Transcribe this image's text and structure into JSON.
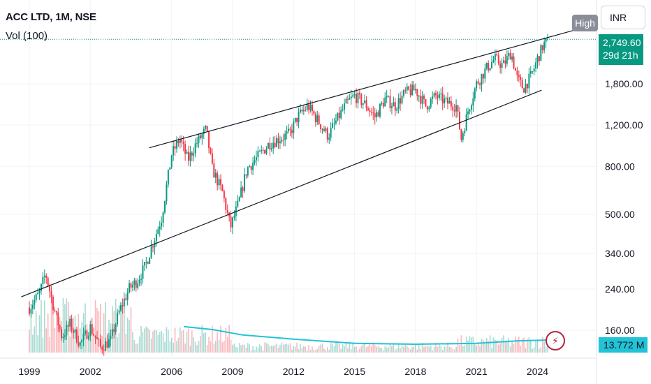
{
  "header": {
    "title": "ACC LTD, 1M, NSE",
    "volume_label": "Vol (100)"
  },
  "currency": "INR",
  "last_price": "2,749.60",
  "countdown": "29d 21h",
  "high_label": "High",
  "volume_value": "13.772 M",
  "icons": {
    "alert": "lightning-bolt-icon"
  },
  "colors": {
    "up": "#089981",
    "down": "#f23645",
    "volume_ma": "#22c3d6",
    "trendline": "#131722",
    "price_line": "#089981"
  },
  "chart_data": {
    "type": "candlestick",
    "interval": "1M",
    "scale": "log",
    "xlim": [
      1998.6,
      2026.2
    ],
    "ylim": [
      120,
      3600
    ],
    "x_ticks": [
      "1999",
      "2002",
      "2006",
      "2009",
      "2012",
      "2015",
      "2018",
      "2021",
      "2024"
    ],
    "y_ticks": [
      160,
      240,
      340,
      500,
      800,
      1200,
      1800
    ],
    "y_tick_labels": [
      "160.00",
      "240.00",
      "340.00",
      "500.00",
      "800.00",
      "1,200.00",
      "1,800.00"
    ],
    "last_close": 2749.6,
    "trendlines": [
      {
        "name": "upper",
        "points": [
          [
            2004.9,
            960
          ],
          [
            2026.0,
            3080
          ]
        ]
      },
      {
        "name": "lower",
        "points": [
          [
            1998.6,
            222
          ],
          [
            2024.2,
            1690
          ]
        ]
      }
    ],
    "price_path": [
      [
        1999.0,
        200
      ],
      [
        1999.5,
        230
      ],
      [
        1999.8,
        280
      ],
      [
        2000.2,
        200
      ],
      [
        2000.6,
        150
      ],
      [
        2001.0,
        170
      ],
      [
        2001.5,
        140
      ],
      [
        2002.0,
        165
      ],
      [
        2002.5,
        135
      ],
      [
        2003.0,
        145
      ],
      [
        2003.4,
        190
      ],
      [
        2003.9,
        240
      ],
      [
        2004.3,
        260
      ],
      [
        2004.7,
        300
      ],
      [
        2005.0,
        360
      ],
      [
        2005.5,
        480
      ],
      [
        2006.0,
        900
      ],
      [
        2006.4,
        1050
      ],
      [
        2006.8,
        850
      ],
      [
        2007.2,
        1000
      ],
      [
        2007.7,
        1150
      ],
      [
        2008.0,
        780
      ],
      [
        2008.5,
        620
      ],
      [
        2008.9,
        440
      ],
      [
        2009.3,
        560
      ],
      [
        2009.7,
        780
      ],
      [
        2010.2,
        870
      ],
      [
        2010.8,
        1000
      ],
      [
        2011.3,
        1050
      ],
      [
        2011.8,
        1100
      ],
      [
        2012.2,
        1300
      ],
      [
        2012.7,
        1450
      ],
      [
        2013.2,
        1250
      ],
      [
        2013.7,
        1080
      ],
      [
        2014.1,
        1250
      ],
      [
        2014.6,
        1480
      ],
      [
        2015.0,
        1600
      ],
      [
        2015.5,
        1480
      ],
      [
        2016.0,
        1300
      ],
      [
        2016.5,
        1550
      ],
      [
        2017.0,
        1450
      ],
      [
        2017.5,
        1650
      ],
      [
        2018.0,
        1700
      ],
      [
        2018.5,
        1450
      ],
      [
        2019.0,
        1600
      ],
      [
        2019.5,
        1500
      ],
      [
        2020.0,
        1450
      ],
      [
        2020.25,
        1050
      ],
      [
        2020.6,
        1400
      ],
      [
        2021.0,
        1800
      ],
      [
        2021.5,
        2100
      ],
      [
        2021.9,
        2300
      ],
      [
        2022.3,
        2150
      ],
      [
        2022.7,
        2450
      ],
      [
        2023.0,
        1900
      ],
      [
        2023.3,
        1720
      ],
      [
        2023.7,
        1950
      ],
      [
        2024.0,
        2300
      ],
      [
        2024.3,
        2650
      ],
      [
        2024.55,
        2749.6
      ]
    ],
    "volume_ma_path": [
      [
        2006.6,
        0.62
      ],
      [
        2008.0,
        0.55
      ],
      [
        2009.5,
        0.42
      ],
      [
        2012.0,
        0.32
      ],
      [
        2015.0,
        0.22
      ],
      [
        2018.0,
        0.2
      ],
      [
        2021.0,
        0.22
      ],
      [
        2023.0,
        0.28
      ],
      [
        2024.6,
        0.3
      ]
    ]
  }
}
